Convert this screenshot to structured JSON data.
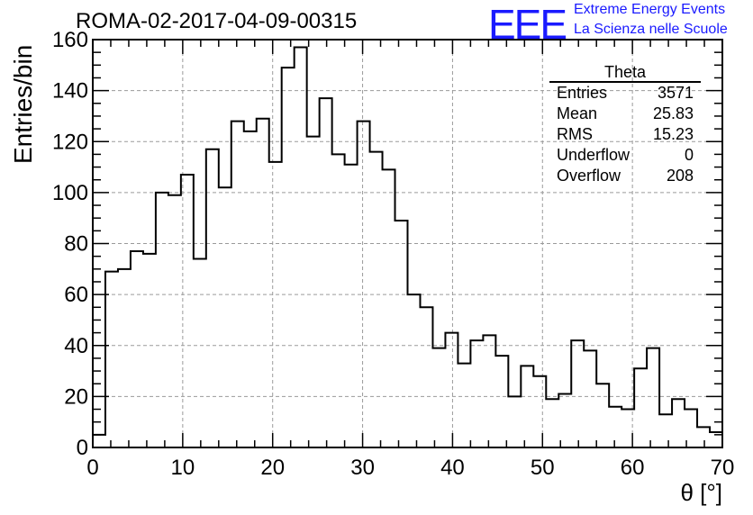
{
  "title": "ROMA-02-2017-04-09-00315",
  "logo": {
    "mark": "EEE",
    "line1": "Extreme Energy Events",
    "line2": "La Scienza nelle Scuole",
    "color": "#1a1aff"
  },
  "stats": {
    "name": "Theta",
    "rows": [
      {
        "label": "Entries",
        "value": "3571"
      },
      {
        "label": "Mean",
        "value": "25.83"
      },
      {
        "label": "RMS",
        "value": "15.23"
      },
      {
        "label": "Underflow",
        "value": "0"
      },
      {
        "label": "Overflow",
        "value": "208"
      }
    ]
  },
  "chart_data": {
    "type": "histogram",
    "xlabel": "θ [°]",
    "ylabel": "Entries/bin",
    "xlim": [
      0,
      70
    ],
    "ylim": [
      0,
      160
    ],
    "bin_width": 1.4,
    "x_ticks": [
      0,
      10,
      20,
      30,
      40,
      50,
      60,
      70
    ],
    "y_ticks": [
      0,
      20,
      40,
      60,
      80,
      100,
      120,
      140,
      160
    ],
    "grid": true,
    "values": [
      5,
      69,
      70,
      77,
      76,
      100,
      99,
      107,
      74,
      117,
      102,
      128,
      124,
      129,
      112,
      149,
      157,
      122,
      137,
      115,
      111,
      128,
      116,
      109,
      89,
      60,
      55,
      39,
      45,
      33,
      42,
      44,
      36,
      20,
      32,
      28,
      19,
      21,
      42,
      38,
      25,
      16,
      15,
      31,
      39,
      13,
      19,
      15,
      8,
      6
    ]
  }
}
